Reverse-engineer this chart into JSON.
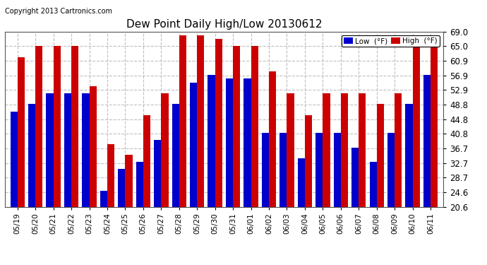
{
  "title": "Dew Point Daily High/Low 20130612",
  "copyright": "Copyright 2013 Cartronics.com",
  "dates": [
    "05/19",
    "05/20",
    "05/21",
    "05/22",
    "05/23",
    "05/24",
    "05/25",
    "05/26",
    "05/27",
    "05/28",
    "05/29",
    "05/30",
    "05/31",
    "06/01",
    "06/02",
    "06/03",
    "06/04",
    "06/05",
    "06/06",
    "06/07",
    "06/08",
    "06/09",
    "06/10",
    "06/11"
  ],
  "low": [
    47.0,
    49.0,
    52.0,
    52.0,
    52.0,
    25.0,
    31.0,
    33.0,
    39.0,
    49.0,
    55.0,
    57.0,
    56.0,
    56.0,
    41.0,
    41.0,
    34.0,
    41.0,
    41.0,
    37.0,
    33.0,
    41.0,
    49.0,
    57.0
  ],
  "high": [
    62.0,
    65.0,
    65.0,
    65.0,
    54.0,
    38.0,
    35.0,
    46.0,
    52.0,
    68.0,
    68.0,
    67.0,
    65.0,
    65.0,
    58.0,
    52.0,
    46.0,
    52.0,
    52.0,
    52.0,
    49.0,
    52.0,
    65.0,
    65.0
  ],
  "ylim": [
    20.6,
    69.0
  ],
  "yticks": [
    20.6,
    24.6,
    28.7,
    32.7,
    36.7,
    40.8,
    44.8,
    48.8,
    52.9,
    56.9,
    60.9,
    65.0,
    69.0
  ],
  "low_color": "#0000cc",
  "high_color": "#cc0000",
  "bg_color": "#ffffff",
  "grid_color": "#b0b0b0",
  "bar_width": 0.4,
  "legend_low_label": "Low  (°F)",
  "legend_high_label": "High  (°F)"
}
